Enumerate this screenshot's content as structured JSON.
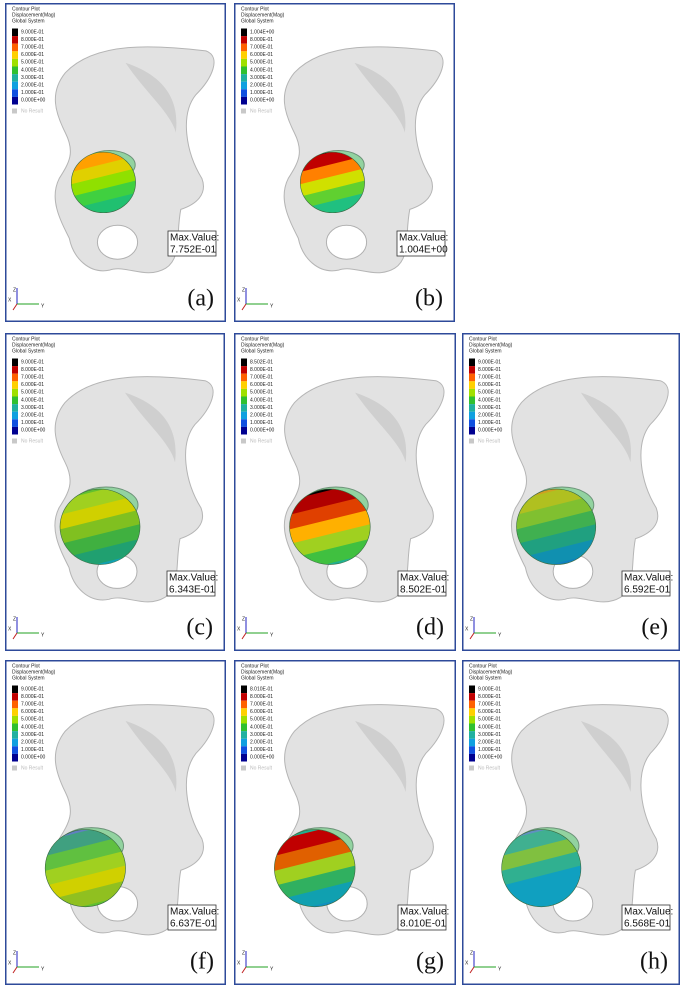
{
  "legend_header": {
    "title": "Contour Plot",
    "quantity": "Displacement(Mag)",
    "system": "Global System",
    "no_result": "No Result",
    "max_label": "Max.Value:"
  },
  "axes": [
    "Z",
    "X",
    "Y"
  ],
  "panels": [
    {
      "label": "(a)",
      "max_value": "7.752E-01",
      "legend": [
        "9.000E-01",
        "8.000E-01",
        "7.000E-01",
        "6.000E-01",
        "5.000E-01",
        "4.000E-01",
        "3.000E-01",
        "2.000E-01",
        "1.000E-01",
        "0.000E+00"
      ]
    },
    {
      "label": "(b)",
      "max_value": "1.004E+00",
      "legend": [
        "1.004E+00",
        "8.000E-01",
        "7.000E-01",
        "6.000E-01",
        "5.000E-01",
        "4.000E-01",
        "3.000E-01",
        "2.000E-01",
        "1.000E-01",
        "0.000E+00"
      ]
    },
    {
      "label": "(c)",
      "max_value": "6.343E-01",
      "legend": [
        "9.000E-01",
        "8.000E-01",
        "7.000E-01",
        "6.000E-01",
        "5.000E-01",
        "4.000E-01",
        "3.000E-01",
        "2.000E-01",
        "1.000E-01",
        "0.000E+00"
      ]
    },
    {
      "label": "(d)",
      "max_value": "8.502E-01",
      "legend": [
        "8.502E-01",
        "8.000E-01",
        "7.000E-01",
        "6.000E-01",
        "5.000E-01",
        "4.000E-01",
        "3.000E-01",
        "2.000E-01",
        "1.000E-01",
        "0.000E+00"
      ]
    },
    {
      "label": "(e)",
      "max_value": "6.592E-01",
      "legend": [
        "9.000E-01",
        "8.000E-01",
        "7.000E-01",
        "6.000E-01",
        "5.000E-01",
        "4.000E-01",
        "3.000E-01",
        "2.000E-01",
        "1.000E-01",
        "0.000E+00"
      ]
    },
    {
      "label": "(f)",
      "max_value": "6.637E-01",
      "legend": [
        "9.000E-01",
        "8.000E-01",
        "7.000E-01",
        "6.000E-01",
        "5.000E-01",
        "4.000E-01",
        "3.000E-01",
        "2.000E-01",
        "1.000E-01",
        "0.000E+00"
      ]
    },
    {
      "label": "(g)",
      "max_value": "8.010E-01",
      "legend": [
        "8.010E-01",
        "8.000E-01",
        "7.000E-01",
        "6.000E-01",
        "5.000E-01",
        "4.000E-01",
        "3.000E-01",
        "2.000E-01",
        "1.000E-01",
        "0.000E+00"
      ]
    },
    {
      "label": "(h)",
      "max_value": "6.568E-01",
      "legend": [
        "9.000E-01",
        "8.000E-01",
        "7.000E-01",
        "6.000E-01",
        "5.000E-01",
        "4.000E-01",
        "3.000E-01",
        "2.000E-01",
        "1.000E-01",
        "0.000E+00"
      ]
    }
  ]
}
